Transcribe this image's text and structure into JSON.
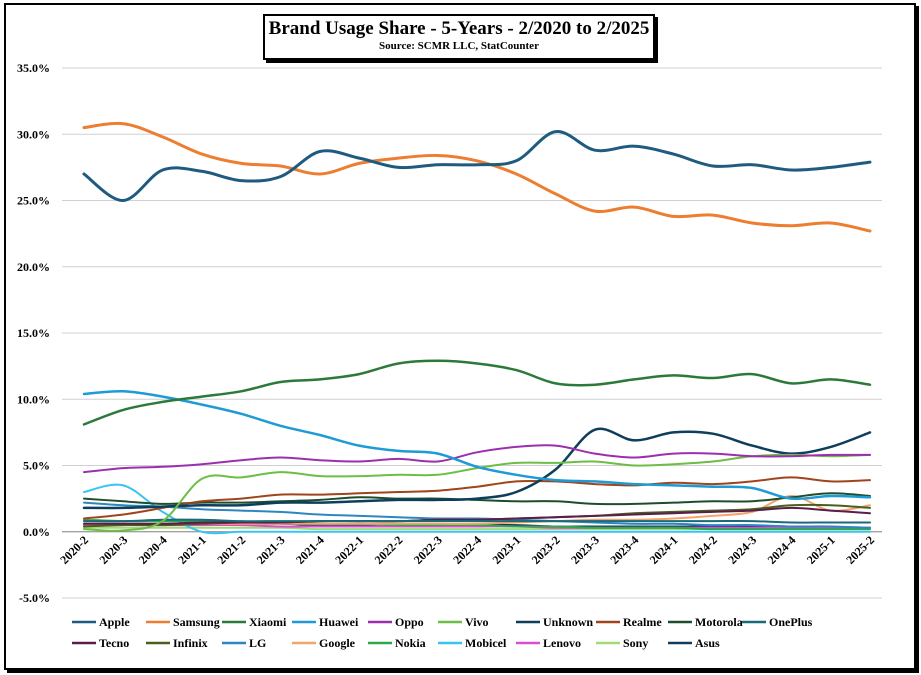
{
  "chart_data": {
    "type": "line",
    "title": "Brand Usage Share - 5-Years - 2/2020 to 2/2025",
    "subtitle": "Source: SCMR LLC, StatCounter",
    "xlabel": "",
    "ylabel": "",
    "ylim": [
      -5,
      35
    ],
    "y_ticks": [
      "-5.0%",
      "0.0%",
      "5.0%",
      "10.0%",
      "15.0%",
      "20.0%",
      "25.0%",
      "30.0%",
      "35.0%"
    ],
    "y_tick_values": [
      -5,
      0,
      5,
      10,
      15,
      20,
      25,
      30,
      35
    ],
    "categories": [
      "2020-2",
      "2020-3",
      "2020-4",
      "2021-1",
      "2021-2",
      "2021-3",
      "2021-4",
      "2022-1",
      "2022-2",
      "2022-3",
      "2022-4",
      "2023-1",
      "2023-2",
      "2023-3",
      "2023-4",
      "2024-1",
      "2024-2",
      "2024-3",
      "2024-4",
      "2025-1",
      "2025-2"
    ],
    "grid": true,
    "legend_position": "bottom",
    "series": [
      {
        "name": "Apple",
        "color": "#1F5B80",
        "width": 3,
        "values": [
          27.0,
          25.0,
          27.3,
          27.2,
          26.5,
          26.8,
          28.7,
          28.2,
          27.5,
          27.7,
          27.7,
          28.0,
          30.2,
          28.8,
          29.1,
          28.5,
          27.6,
          27.7,
          27.3,
          27.5,
          27.9
        ]
      },
      {
        "name": "Samsung",
        "color": "#ED7D31",
        "width": 3,
        "values": [
          30.5,
          30.8,
          29.8,
          28.5,
          27.8,
          27.6,
          27.0,
          27.8,
          28.2,
          28.4,
          28.0,
          27.0,
          25.5,
          24.2,
          24.5,
          23.8,
          23.9,
          23.3,
          23.1,
          23.3,
          22.7
        ]
      },
      {
        "name": "Xiaomi",
        "color": "#2C7A3A",
        "width": 2.5,
        "values": [
          8.1,
          9.2,
          9.8,
          10.2,
          10.6,
          11.3,
          11.5,
          11.9,
          12.7,
          12.9,
          12.7,
          12.2,
          11.2,
          11.1,
          11.5,
          11.8,
          11.6,
          11.9,
          11.2,
          11.5,
          11.1
        ]
      },
      {
        "name": "Huawei",
        "color": "#1E9BD7",
        "width": 2.5,
        "values": [
          10.4,
          10.6,
          10.2,
          9.6,
          8.9,
          8.0,
          7.3,
          6.5,
          6.1,
          5.9,
          4.9,
          4.3,
          3.9,
          3.8,
          3.6,
          3.5,
          3.4,
          3.3,
          2.5,
          2.7,
          2.6
        ]
      },
      {
        "name": "Oppo",
        "color": "#9B2FAE",
        "width": 2,
        "values": [
          4.5,
          4.8,
          4.9,
          5.1,
          5.4,
          5.6,
          5.4,
          5.3,
          5.5,
          5.3,
          6.0,
          6.4,
          6.5,
          5.9,
          5.6,
          5.9,
          5.9,
          5.7,
          5.7,
          5.8,
          5.8
        ]
      },
      {
        "name": "Vivo",
        "color": "#6DBE45",
        "width": 2,
        "values": [
          0.2,
          0.1,
          0.8,
          4.0,
          4.1,
          4.5,
          4.2,
          4.2,
          4.3,
          4.3,
          4.8,
          5.2,
          5.2,
          5.3,
          5.0,
          5.1,
          5.3,
          5.7,
          5.8,
          5.7,
          5.8
        ]
      },
      {
        "name": "Unknown",
        "color": "#0D3E5C",
        "width": 2.5,
        "values": [
          1.8,
          1.8,
          1.9,
          2.0,
          2.0,
          2.2,
          2.2,
          2.3,
          2.4,
          2.4,
          2.5,
          3.0,
          4.7,
          7.7,
          6.9,
          7.5,
          7.4,
          6.5,
          5.9,
          6.4,
          7.5
        ]
      },
      {
        "name": "Realme",
        "color": "#A0441C",
        "width": 2,
        "values": [
          1.0,
          1.3,
          1.8,
          2.3,
          2.5,
          2.8,
          2.8,
          2.9,
          3.0,
          3.1,
          3.4,
          3.8,
          3.8,
          3.6,
          3.5,
          3.7,
          3.6,
          3.8,
          4.1,
          3.8,
          3.9
        ]
      },
      {
        "name": "Motorola",
        "color": "#1F4D2B",
        "width": 2,
        "values": [
          2.5,
          2.3,
          2.1,
          2.2,
          2.2,
          2.3,
          2.4,
          2.6,
          2.5,
          2.5,
          2.4,
          2.3,
          2.3,
          2.1,
          2.1,
          2.2,
          2.3,
          2.3,
          2.6,
          2.9,
          2.7
        ]
      },
      {
        "name": "OnePlus",
        "color": "#1A6A7A",
        "width": 2,
        "values": [
          0.8,
          0.8,
          0.9,
          0.9,
          0.8,
          0.8,
          0.8,
          0.8,
          0.8,
          0.8,
          0.8,
          0.8,
          0.8,
          0.8,
          0.8,
          0.8,
          0.8,
          0.8,
          0.7,
          0.7,
          0.7
        ]
      },
      {
        "name": "Tecno",
        "color": "#5A1E4A",
        "width": 2,
        "values": [
          0.6,
          0.6,
          0.6,
          0.7,
          0.7,
          0.7,
          0.8,
          0.8,
          0.8,
          0.9,
          0.9,
          1.0,
          1.1,
          1.2,
          1.3,
          1.4,
          1.5,
          1.6,
          1.8,
          1.6,
          1.4
        ]
      },
      {
        "name": "Infinix",
        "color": "#4A5E1E",
        "width": 2,
        "values": [
          0.4,
          0.5,
          0.5,
          0.6,
          0.7,
          0.7,
          0.8,
          0.8,
          0.8,
          0.9,
          0.9,
          1.0,
          1.1,
          1.2,
          1.4,
          1.5,
          1.6,
          1.7,
          2.0,
          2.0,
          1.8
        ]
      },
      {
        "name": "LG",
        "color": "#2E86C1",
        "width": 2,
        "values": [
          2.2,
          2.0,
          1.9,
          1.7,
          1.6,
          1.5,
          1.3,
          1.2,
          1.1,
          1.0,
          1.0,
          0.9,
          0.8,
          0.7,
          0.6,
          0.6,
          0.5,
          0.5,
          0.4,
          0.4,
          0.3
        ]
      },
      {
        "name": "Google",
        "color": "#F4A36B",
        "width": 2,
        "values": [
          0.6,
          0.6,
          0.6,
          0.6,
          0.6,
          0.6,
          0.6,
          0.6,
          0.6,
          0.6,
          0.6,
          0.7,
          0.8,
          0.9,
          0.9,
          1.0,
          1.2,
          1.5,
          2.7,
          1.6,
          2.0
        ]
      },
      {
        "name": "Nokia",
        "color": "#2EA84A",
        "width": 2,
        "values": [
          0.9,
          0.8,
          0.8,
          0.8,
          0.7,
          0.7,
          0.6,
          0.6,
          0.5,
          0.5,
          0.5,
          0.4,
          0.4,
          0.3,
          0.3,
          0.3,
          0.2,
          0.2,
          0.2,
          0.2,
          0.2
        ]
      },
      {
        "name": "Mobicel",
        "color": "#38C3F0",
        "width": 2,
        "values": [
          3.0,
          3.5,
          1.5,
          0.0,
          0.0,
          0.0,
          0.0,
          0.0,
          0.0,
          0.0,
          0.0,
          0.0,
          0.0,
          0.0,
          0.0,
          0.0,
          0.0,
          0.0,
          0.0,
          0.0,
          0.0
        ]
      },
      {
        "name": "Lenovo",
        "color": "#D94FD3",
        "width": 2,
        "values": [
          0.5,
          0.5,
          0.5,
          0.5,
          0.5,
          0.4,
          0.4,
          0.4,
          0.4,
          0.4,
          0.4,
          0.4,
          0.3,
          0.3,
          0.3,
          0.3,
          0.3,
          0.3,
          0.3,
          0.3,
          0.3
        ]
      },
      {
        "name": "Sony",
        "color": "#A3D977",
        "width": 2,
        "values": [
          0.3,
          0.3,
          0.3,
          0.3,
          0.3,
          0.3,
          0.2,
          0.2,
          0.2,
          0.2,
          0.2,
          0.2,
          0.2,
          0.2,
          0.2,
          0.2,
          0.2,
          0.2,
          0.2,
          0.2,
          0.2
        ]
      },
      {
        "name": "Asus",
        "color": "#123B5E",
        "width": 2,
        "values": [
          0.6,
          0.6,
          0.6,
          0.6,
          0.6,
          0.6,
          0.5,
          0.5,
          0.5,
          0.5,
          0.5,
          0.5,
          0.4,
          0.4,
          0.4,
          0.4,
          0.4,
          0.4,
          0.4,
          0.3,
          0.3
        ]
      }
    ]
  }
}
